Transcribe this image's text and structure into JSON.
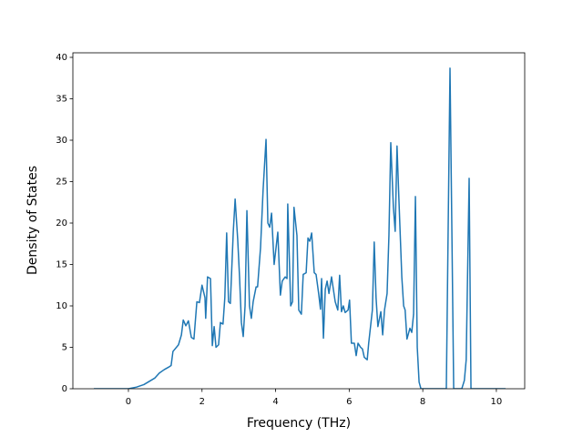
{
  "chart_data": {
    "type": "line",
    "xlabel": "Frequency (THz)",
    "ylabel": "Density of States",
    "x": [
      -0.94,
      0,
      0.22,
      0.42,
      0.57,
      0.72,
      0.84,
      0.97,
      1.09,
      1.16,
      1.21,
      1.36,
      1.44,
      1.49,
      1.56,
      1.63,
      1.71,
      1.78,
      1.86,
      1.93,
      2.0,
      2.08,
      2.1,
      2.15,
      2.23,
      2.28,
      2.33,
      2.38,
      2.45,
      2.5,
      2.57,
      2.62,
      2.67,
      2.72,
      2.77,
      2.85,
      2.9,
      2.97,
      3.02,
      3.07,
      3.12,
      3.17,
      3.22,
      3.29,
      3.34,
      3.39,
      3.47,
      3.51,
      3.59,
      3.66,
      3.74,
      3.79,
      3.84,
      3.89,
      3.96,
      4.06,
      4.13,
      4.18,
      4.26,
      4.31,
      4.33,
      4.41,
      4.46,
      4.5,
      4.58,
      4.63,
      4.7,
      4.75,
      4.83,
      4.88,
      4.93,
      4.98,
      5.05,
      5.1,
      5.17,
      5.22,
      5.25,
      5.3,
      5.35,
      5.4,
      5.45,
      5.52,
      5.57,
      5.62,
      5.69,
      5.74,
      5.79,
      5.84,
      5.89,
      5.97,
      6.01,
      6.06,
      6.14,
      6.19,
      6.24,
      6.31,
      6.36,
      6.41,
      6.49,
      6.53,
      6.58,
      6.63,
      6.68,
      6.73,
      6.78,
      6.86,
      6.91,
      6.96,
      7.03,
      7.08,
      7.13,
      7.2,
      7.25,
      7.3,
      7.35,
      7.43,
      7.48,
      7.52,
      7.57,
      7.65,
      7.7,
      7.75,
      7.8,
      7.85,
      7.9,
      7.95,
      8.64,
      8.74,
      8.84,
      9.06,
      9.13,
      9.18,
      9.26,
      9.31,
      10.25
    ],
    "series": [
      {
        "color": "#1f77b4",
        "values": [
          0,
          0,
          0.2,
          0.5,
          0.9,
          1.3,
          1.9,
          2.3,
          2.6,
          2.8,
          4.5,
          5.3,
          6.5,
          8.3,
          7.6,
          8.2,
          6.2,
          6,
          10.5,
          10.4,
          12.5,
          11,
          8.5,
          13.5,
          13.3,
          5.2,
          7.5,
          5,
          5.3,
          8,
          7.8,
          11,
          18.8,
          10.5,
          10.3,
          19,
          22.9,
          18,
          13.5,
          8,
          6.3,
          10,
          21.5,
          10,
          8.5,
          10.5,
          12.3,
          12.3,
          17,
          24,
          30.1,
          20,
          19.5,
          21.2,
          15,
          18.9,
          11.3,
          13,
          13.5,
          13.3,
          22.3,
          10,
          10.5,
          21.9,
          18.5,
          9.5,
          9,
          13.8,
          14,
          18.2,
          17.8,
          18.8,
          14,
          13.8,
          11.5,
          9.6,
          13.3,
          6.1,
          12,
          13,
          11.5,
          13.5,
          12,
          10.5,
          9.5,
          13.7,
          9.3,
          10,
          9.2,
          9.5,
          10.7,
          5.5,
          5.5,
          4,
          5.5,
          5,
          4.8,
          3.8,
          3.5,
          5.5,
          7.5,
          9.5,
          17.7,
          11,
          7.5,
          9.3,
          6.5,
          9.5,
          11.5,
          18.5,
          29.7,
          22,
          19,
          29.3,
          23,
          13.5,
          10,
          9.5,
          6,
          7.3,
          6.8,
          9,
          23.2,
          5,
          0.8,
          0,
          0,
          38.7,
          0,
          0,
          1,
          3.5,
          25.4,
          0,
          0
        ]
      }
    ],
    "xlim": [
      -1.51,
      10.77
    ],
    "xticks": [
      0,
      2,
      4,
      6,
      8,
      10
    ],
    "ylim": [
      0,
      40.55
    ],
    "yticks": [
      0,
      5,
      10,
      15,
      20,
      25,
      30,
      35,
      40
    ]
  }
}
